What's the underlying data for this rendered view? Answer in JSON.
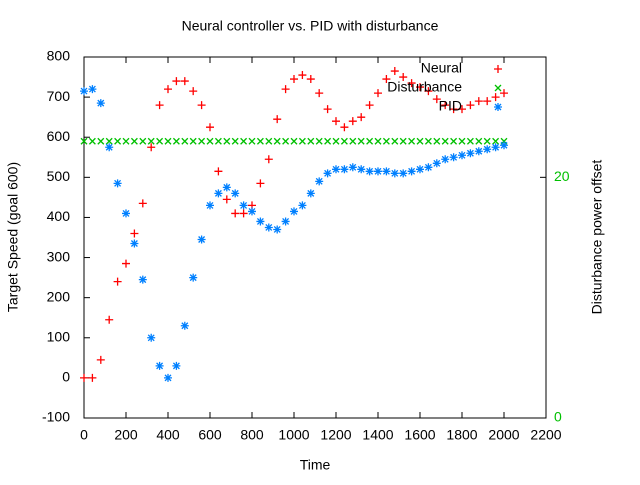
{
  "chart_data": {
    "type": "scatter",
    "title": "Neural controller vs. PID with disturbance",
    "x_label": "Time",
    "y_label": "Target Speed (goal 600)",
    "y2_label": "Disturbance power offset",
    "x": [
      0,
      40,
      80,
      120,
      160,
      200,
      240,
      280,
      320,
      360,
      400,
      440,
      480,
      520,
      560,
      600,
      640,
      680,
      720,
      760,
      800,
      840,
      880,
      920,
      960,
      1000,
      1040,
      1080,
      1120,
      1160,
      1200,
      1240,
      1280,
      1320,
      1360,
      1400,
      1440,
      1480,
      1520,
      1560,
      1600,
      1640,
      1680,
      1720,
      1760,
      1800,
      1840,
      1880,
      1920,
      1960,
      2000
    ],
    "series": [
      {
        "name": "Neural",
        "color": "#ff0000",
        "marker": "plus",
        "values": [
          0,
          0,
          45,
          145,
          240,
          285,
          360,
          435,
          575,
          680,
          720,
          740,
          740,
          715,
          680,
          625,
          515,
          445,
          410,
          410,
          430,
          485,
          545,
          645,
          720,
          745,
          755,
          745,
          710,
          670,
          640,
          625,
          640,
          650,
          680,
          710,
          745,
          765,
          750,
          735,
          725,
          715,
          695,
          680,
          670,
          670,
          680,
          690,
          690,
          700,
          710
        ]
      },
      {
        "name": "Disturbance",
        "color": "#00c000",
        "marker": "cross",
        "axis": "y2",
        "values": [
          23,
          23,
          23,
          23,
          23,
          23,
          23,
          23,
          23,
          23,
          23,
          23,
          23,
          23,
          23,
          23,
          23,
          23,
          23,
          23,
          23,
          23,
          23,
          23,
          23,
          23,
          23,
          23,
          23,
          23,
          23,
          23,
          23,
          23,
          23,
          23,
          23,
          23,
          23,
          23,
          23,
          23,
          23,
          23,
          23,
          23,
          23,
          23,
          23,
          23,
          23
        ]
      },
      {
        "name": "PID",
        "color": "#0080ff",
        "marker": "star",
        "values": [
          715,
          720,
          685,
          575,
          485,
          410,
          335,
          245,
          100,
          30,
          0,
          30,
          130,
          250,
          345,
          430,
          460,
          475,
          460,
          430,
          415,
          390,
          375,
          370,
          390,
          415,
          430,
          460,
          490,
          510,
          520,
          520,
          525,
          520,
          515,
          515,
          515,
          510,
          510,
          515,
          520,
          525,
          535,
          545,
          550,
          555,
          560,
          565,
          570,
          575,
          580
        ]
      }
    ],
    "xlim": [
      0,
      2200
    ],
    "xticks": [
      0,
      200,
      400,
      600,
      800,
      1000,
      1200,
      1400,
      1600,
      1800,
      2000,
      2200
    ],
    "ylim": [
      -100,
      800
    ],
    "yticks": [
      -100,
      0,
      100,
      200,
      300,
      400,
      500,
      600,
      700,
      800
    ],
    "y2lim": [
      0,
      30
    ],
    "y2ticks": [
      0,
      20
    ],
    "legend": "top-right"
  }
}
